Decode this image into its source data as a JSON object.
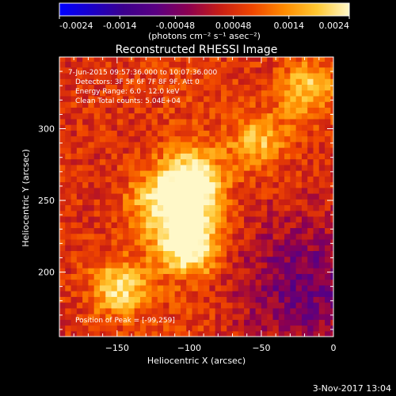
{
  "chart_data": {
    "type": "heatmap",
    "title": "Reconstructed RHESSI Image",
    "xlabel": "Heliocentric X (arcsec)",
    "ylabel": "Heliocentric Y (arcsec)",
    "xlim": [
      -190,
      0
    ],
    "ylim": [
      155,
      350
    ],
    "x_ticks": [
      -150,
      -100,
      -50,
      0
    ],
    "y_ticks": [
      200,
      250,
      300
    ],
    "colorbar": {
      "min": -0.0024,
      "max": 0.0024,
      "tick_labels": [
        "-0.0024",
        "-0.0014",
        "-0.00048",
        "0.00048",
        "0.0014",
        "0.0024"
      ],
      "tick_values": [
        -0.0024,
        -0.0014,
        -0.00048,
        0.00048,
        0.0014,
        0.0024
      ],
      "unit_label": "(photons cm⁻² s⁻¹ asec⁻²)",
      "colors": [
        "#0000ff",
        "#1a00c8",
        "#3c008c",
        "#5a0082",
        "#8c0050",
        "#c81e14",
        "#f04600",
        "#ff8c00",
        "#ffc832",
        "#fff8c8"
      ]
    },
    "annotations": [
      "7-Jun-2015 09:57:36.000 to 10:07:36.000",
      "Detectors: 3F 5F 6F 7F 8F 9F, Att 0",
      "Energy Range: 6.0 - 12.0 keV",
      "Clean     Total counts: 5.04E+04"
    ],
    "peak_label": "Position of Peak = [-99,259]",
    "peak": [
      -99,
      259
    ],
    "sources": [
      {
        "x": -99,
        "y": 259,
        "amp": 0.0024
      },
      {
        "x": -102,
        "y": 222,
        "amp": 0.0021
      },
      {
        "x": -148,
        "y": 189,
        "amp": 0.0017
      },
      {
        "x": -52,
        "y": 292,
        "amp": 0.0013
      },
      {
        "x": -18,
        "y": 328,
        "amp": 0.0014
      },
      {
        "x": -125,
        "y": 248,
        "amp": 0.0012
      }
    ],
    "negative_region": {
      "x": -20,
      "y": 190,
      "amp": -0.0011
    }
  },
  "footer": {
    "date": "3-Nov-2017 13:04"
  }
}
